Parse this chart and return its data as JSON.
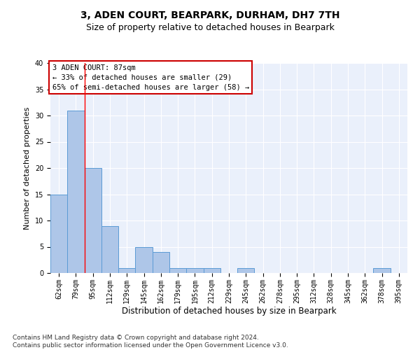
{
  "title1": "3, ADEN COURT, BEARPARK, DURHAM, DH7 7TH",
  "title2": "Size of property relative to detached houses in Bearpark",
  "xlabel": "Distribution of detached houses by size in Bearpark",
  "ylabel": "Number of detached properties",
  "categories": [
    "62sqm",
    "79sqm",
    "95sqm",
    "112sqm",
    "129sqm",
    "145sqm",
    "162sqm",
    "179sqm",
    "195sqm",
    "212sqm",
    "229sqm",
    "245sqm",
    "262sqm",
    "278sqm",
    "295sqm",
    "312sqm",
    "328sqm",
    "345sqm",
    "362sqm",
    "378sqm",
    "395sqm"
  ],
  "values": [
    15,
    31,
    20,
    9,
    1,
    5,
    4,
    1,
    1,
    1,
    0,
    1,
    0,
    0,
    0,
    0,
    0,
    0,
    0,
    1,
    0
  ],
  "bar_color": "#aec6e8",
  "bar_edge_color": "#5b9bd5",
  "background_color": "#eaf0fb",
  "ylim": [
    0,
    40
  ],
  "yticks": [
    0,
    5,
    10,
    15,
    20,
    25,
    30,
    35,
    40
  ],
  "red_line_x": 1.5,
  "annotation_text": "3 ADEN COURT: 87sqm\n← 33% of detached houses are smaller (29)\n65% of semi-detached houses are larger (58) →",
  "annotation_box_color": "#ffffff",
  "annotation_box_edge": "#cc0000",
  "footnote": "Contains HM Land Registry data © Crown copyright and database right 2024.\nContains public sector information licensed under the Open Government Licence v3.0.",
  "title1_fontsize": 10,
  "title2_fontsize": 9,
  "xlabel_fontsize": 8.5,
  "ylabel_fontsize": 8,
  "tick_fontsize": 7,
  "annotation_fontsize": 7.5,
  "footnote_fontsize": 6.5
}
